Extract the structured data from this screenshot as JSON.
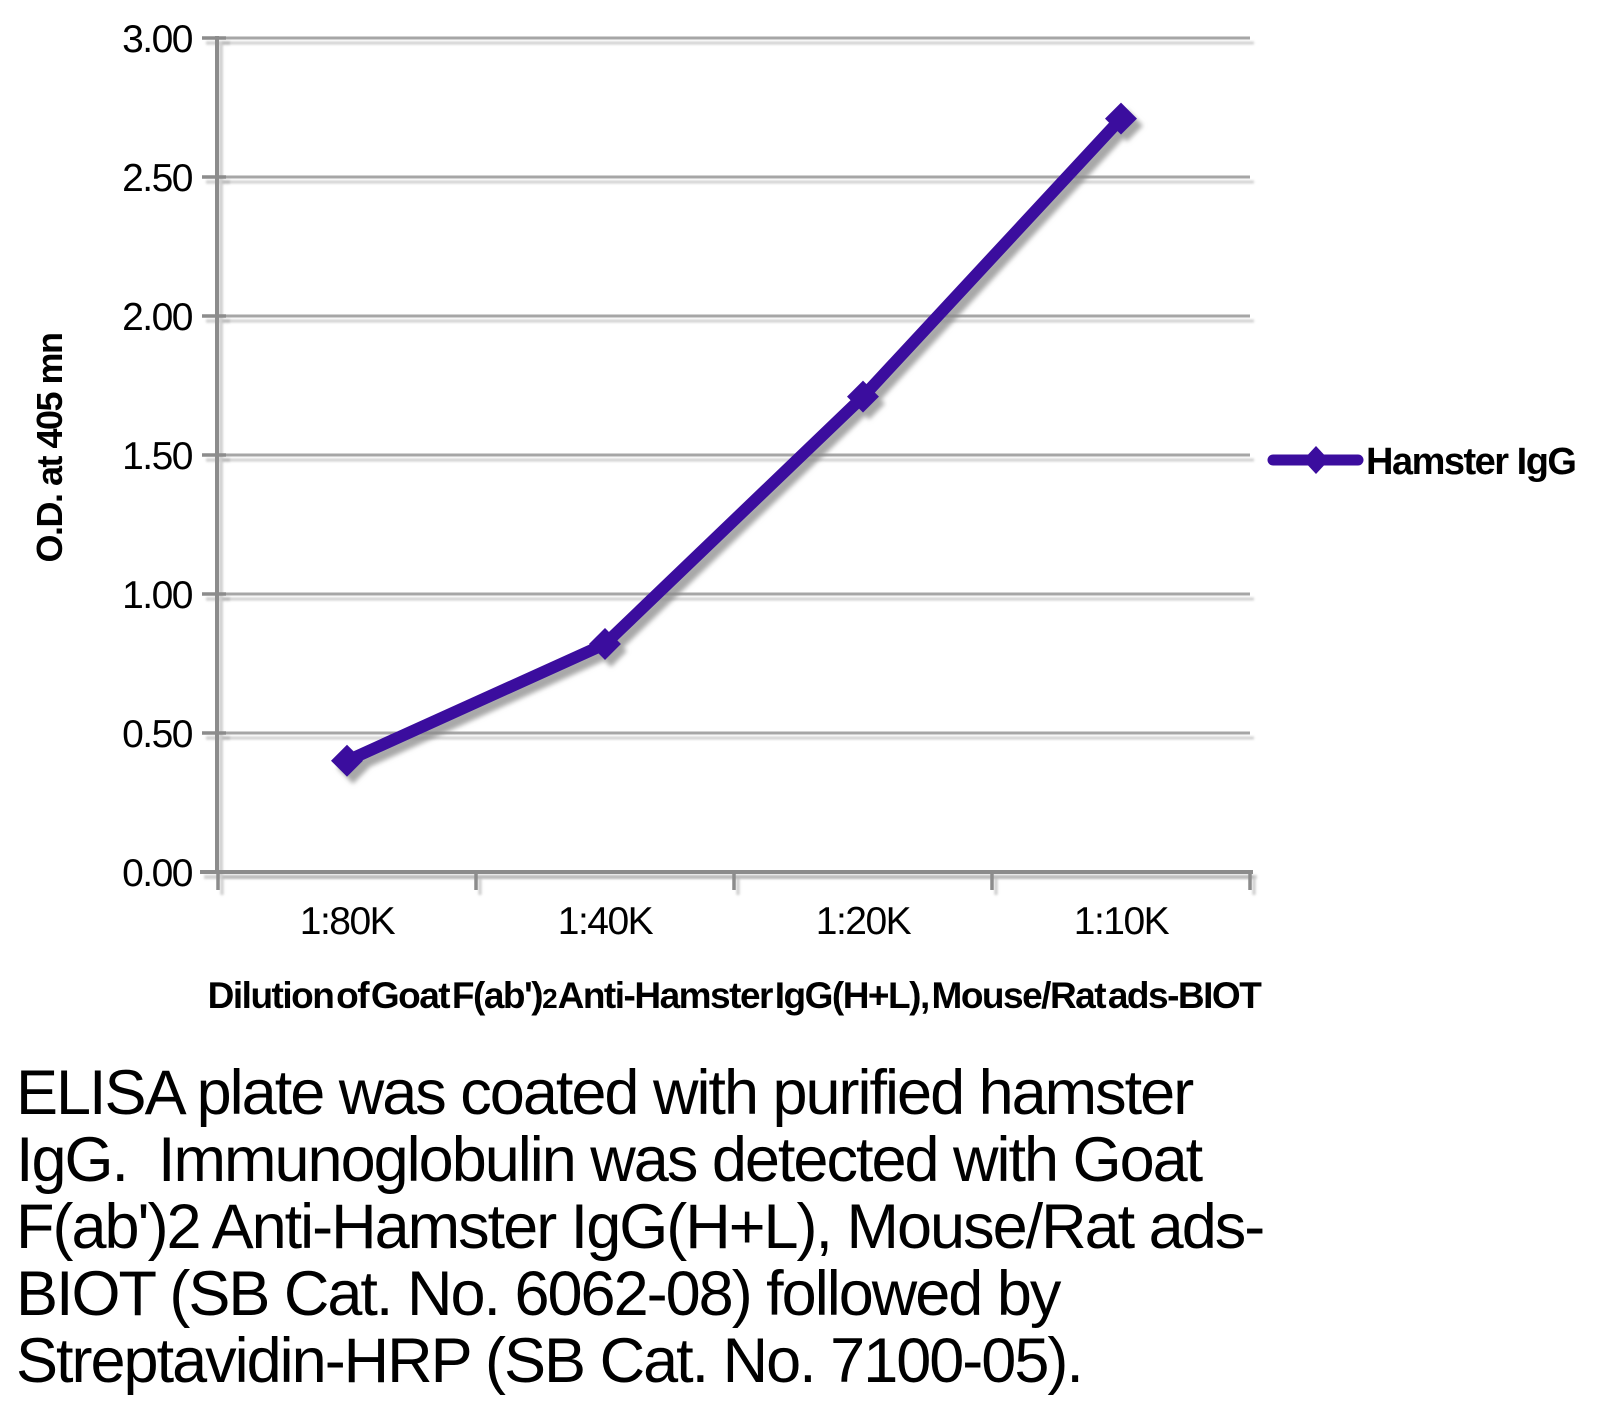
{
  "chart_data": {
    "type": "line",
    "title": "",
    "categories": [
      "1:80K",
      "1:40K",
      "1:20K",
      "1:10K"
    ],
    "series": [
      {
        "name": "Hamster IgG",
        "values": [
          0.4,
          0.82,
          1.71,
          2.71
        ],
        "color": "#3B0D9E",
        "marker": "diamond"
      }
    ],
    "xlabel": "Dilution of Goat F(ab')2 Anti-Hamster IgG(H+L), Mouse/Rat ads-BIOT",
    "xlabel_parts": {
      "prefix": "Dilution of Goat F(ab')",
      "subscript": "2",
      "suffix": " Anti-Hamster IgG(H+L), Mouse/Rat ads-BIOT"
    },
    "ylabel": "O.D. at 405 mn",
    "ylim": [
      0.0,
      3.0
    ],
    "ytick_step": 0.5,
    "ytick_labels": [
      "0.00",
      "0.50",
      "1.00",
      "1.50",
      "2.00",
      "2.50",
      "3.00"
    ],
    "grid": true,
    "legend_position": "right"
  },
  "legend": {
    "label": "Hamster IgG"
  },
  "caption": {
    "lines": [
      "ELISA plate was coated with purified hamster",
      "IgG.  Immunoglobulin was detected with Goat",
      "F(ab')2 Anti-Hamster IgG(H+L), Mouse/Rat ads-",
      "BIOT (SB Cat. No. 6062-08) followed by",
      "Streptavidin-HRP (SB Cat. No. 7100-05)."
    ]
  },
  "colors": {
    "series": "#3B0D9E",
    "gridline": "#A6A6A6",
    "axis": "#8C8C8C",
    "text": "#000000",
    "background": "#FFFFFF"
  }
}
